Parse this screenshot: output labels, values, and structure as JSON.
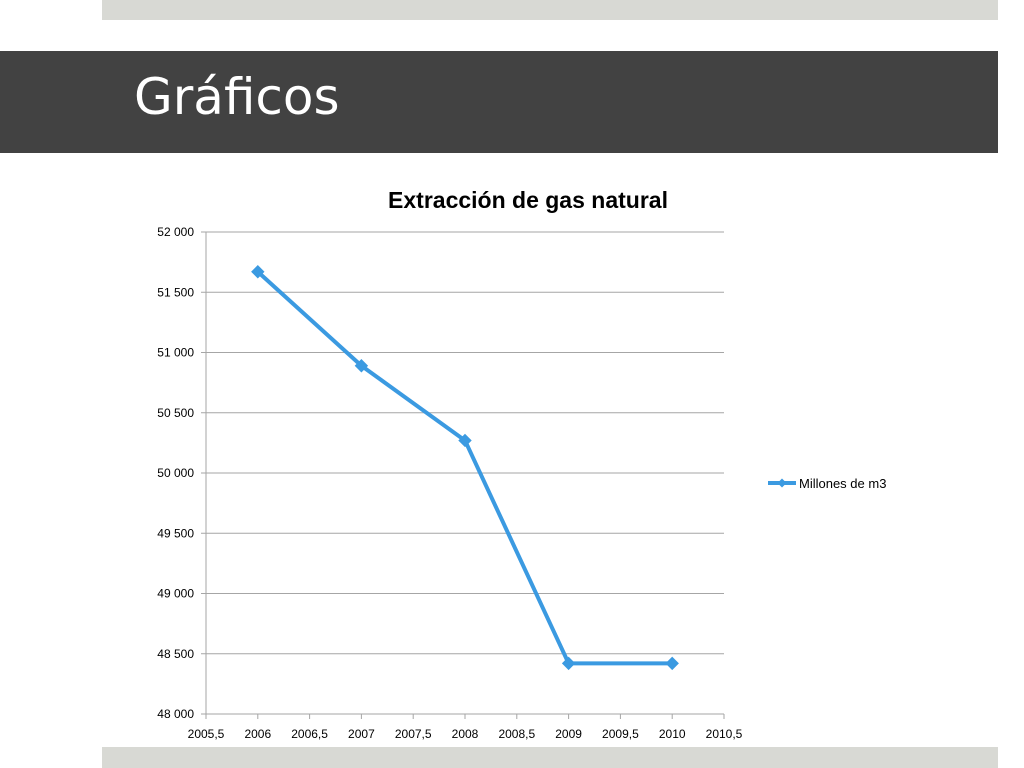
{
  "slide": {
    "title": "Gráficos"
  },
  "colors": {
    "title_band": "#424242",
    "accent_band": "#d8d9d4",
    "series": "#3b9ae1",
    "grid": "#a6a6a6"
  },
  "chart_data": {
    "type": "line",
    "title": "Extracción de gas natural",
    "xlabel": "",
    "ylabel": "",
    "xlim": [
      2005.5,
      2010.5
    ],
    "ylim": [
      48000,
      52000
    ],
    "x_ticks": [
      "2005,5",
      "2006",
      "2006,5",
      "2007",
      "2007,5",
      "2008",
      "2008,5",
      "2009",
      "2009,5",
      "2010",
      "2010,5"
    ],
    "x_tick_values": [
      2005.5,
      2006,
      2006.5,
      2007,
      2007.5,
      2008,
      2008.5,
      2009,
      2009.5,
      2010,
      2010.5
    ],
    "y_ticks": [
      "48 000",
      "48 500",
      "49 000",
      "49 500",
      "50 000",
      "50 500",
      "51 000",
      "51 500",
      "52 000"
    ],
    "y_tick_values": [
      48000,
      48500,
      49000,
      49500,
      50000,
      50500,
      51000,
      51500,
      52000
    ],
    "grid": true,
    "legend_position": "right",
    "series": [
      {
        "name": "Millones de m3",
        "x": [
          2006,
          2007,
          2008,
          2009,
          2010
        ],
        "y": [
          51670,
          50890,
          50270,
          48420,
          48420
        ],
        "marker": "diamond"
      }
    ]
  }
}
